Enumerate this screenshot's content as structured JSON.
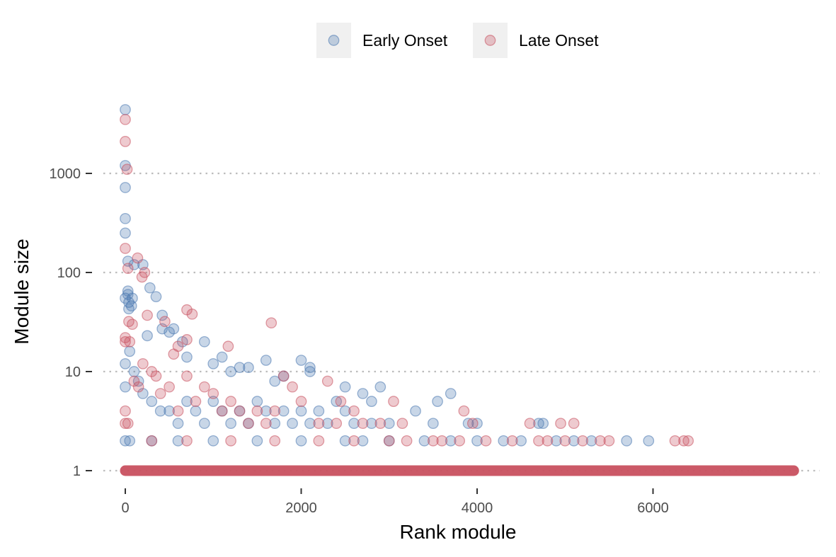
{
  "chart_data": {
    "type": "scatter",
    "xlabel": "Rank module",
    "ylabel": "Module size",
    "xlim": [
      -200,
      7800
    ],
    "ylim": [
      0.72,
      5000
    ],
    "y_scale": "log10",
    "x_ticks": [
      0,
      2000,
      4000,
      6000
    ],
    "x_tick_labels": [
      "0",
      "2000",
      "4000",
      "6000"
    ],
    "y_ticks": [
      1,
      10,
      100,
      1000
    ],
    "y_tick_labels": [
      "1",
      "10",
      "100",
      "1000"
    ],
    "grid": "horizontal dotted at major y ticks",
    "legend": {
      "position": "top",
      "items": [
        "Early Onset",
        "Late Onset"
      ]
    },
    "series": [
      {
        "name": "Early Onset",
        "color": "#4a78b0",
        "points": [
          [
            0,
            4400
          ],
          [
            0,
            1200
          ],
          [
            0,
            720
          ],
          [
            0,
            350
          ],
          [
            0,
            250
          ],
          [
            30,
            130
          ],
          [
            0,
            55
          ],
          [
            30,
            65
          ],
          [
            30,
            60
          ],
          [
            40,
            50
          ],
          [
            40,
            43
          ],
          [
            70,
            46
          ],
          [
            80,
            55
          ],
          [
            100,
            120
          ],
          [
            200,
            120
          ],
          [
            250,
            23
          ],
          [
            280,
            70
          ],
          [
            350,
            57
          ],
          [
            420,
            37
          ],
          [
            420,
            27
          ],
          [
            500,
            25
          ],
          [
            550,
            27
          ],
          [
            650,
            20
          ],
          [
            700,
            14
          ],
          [
            900,
            20
          ],
          [
            1000,
            12
          ],
          [
            1100,
            14
          ],
          [
            1200,
            10
          ],
          [
            1300,
            11
          ],
          [
            1400,
            11
          ],
          [
            1600,
            13
          ],
          [
            1700,
            8
          ],
          [
            1800,
            9
          ],
          [
            2000,
            13
          ],
          [
            2100,
            10
          ],
          [
            2100,
            11
          ],
          [
            2400,
            5
          ],
          [
            2500,
            7
          ],
          [
            2700,
            6
          ],
          [
            2800,
            5
          ],
          [
            2900,
            7
          ],
          [
            3300,
            4
          ],
          [
            3550,
            5
          ],
          [
            3700,
            6
          ],
          [
            3000,
            3
          ],
          [
            3500,
            3
          ],
          [
            3900,
            3
          ],
          [
            4000,
            3
          ],
          [
            4700,
            3
          ],
          [
            4750,
            3
          ],
          [
            0,
            12
          ],
          [
            0,
            7
          ],
          [
            50,
            16
          ],
          [
            100,
            10
          ],
          [
            150,
            8
          ],
          [
            200,
            6
          ],
          [
            300,
            5
          ],
          [
            400,
            4
          ],
          [
            500,
            4
          ],
          [
            600,
            3
          ],
          [
            700,
            5
          ],
          [
            800,
            4
          ],
          [
            900,
            3
          ],
          [
            1000,
            5
          ],
          [
            1100,
            4
          ],
          [
            1200,
            3
          ],
          [
            1300,
            4
          ],
          [
            1400,
            3
          ],
          [
            1500,
            5
          ],
          [
            1600,
            4
          ],
          [
            1700,
            3
          ],
          [
            1800,
            4
          ],
          [
            1900,
            3
          ],
          [
            2000,
            4
          ],
          [
            2100,
            3
          ],
          [
            2200,
            4
          ],
          [
            2300,
            3
          ],
          [
            2500,
            4
          ],
          [
            2600,
            3
          ],
          [
            2800,
            3
          ],
          [
            0,
            2
          ],
          [
            50,
            2
          ],
          [
            300,
            2
          ],
          [
            600,
            2
          ],
          [
            1000,
            2
          ],
          [
            1500,
            2
          ],
          [
            2000,
            2
          ],
          [
            2500,
            2
          ],
          [
            2700,
            2
          ],
          [
            3000,
            2
          ],
          [
            3400,
            2
          ],
          [
            3700,
            2
          ],
          [
            4000,
            2
          ],
          [
            4300,
            2
          ],
          [
            4500,
            2
          ],
          [
            4900,
            2
          ],
          [
            5100,
            2
          ],
          [
            5300,
            2
          ],
          [
            5700,
            2
          ],
          [
            5950,
            2
          ]
        ]
      },
      {
        "name": "Late Onset",
        "color": "#c8505f",
        "points": [
          [
            0,
            3500
          ],
          [
            0,
            2100
          ],
          [
            20,
            1100
          ],
          [
            0,
            175
          ],
          [
            30,
            110
          ],
          [
            140,
            140
          ],
          [
            190,
            90
          ],
          [
            220,
            100
          ],
          [
            80,
            30
          ],
          [
            40,
            32
          ],
          [
            0,
            22
          ],
          [
            0,
            20
          ],
          [
            50,
            20
          ],
          [
            250,
            37
          ],
          [
            450,
            32
          ],
          [
            700,
            42
          ],
          [
            760,
            38
          ],
          [
            600,
            18
          ],
          [
            550,
            15
          ],
          [
            700,
            21
          ],
          [
            1170,
            18
          ],
          [
            1660,
            31
          ],
          [
            2000,
            5
          ],
          [
            2300,
            8
          ],
          [
            2450,
            5
          ],
          [
            2600,
            4
          ],
          [
            3050,
            5
          ],
          [
            3150,
            3
          ],
          [
            3600,
            2
          ],
          [
            3850,
            4
          ],
          [
            3950,
            3
          ],
          [
            4600,
            3
          ],
          [
            4950,
            3
          ],
          [
            5100,
            3
          ],
          [
            0,
            4
          ],
          [
            0,
            3
          ],
          [
            30,
            3
          ],
          [
            100,
            8
          ],
          [
            150,
            7
          ],
          [
            200,
            12
          ],
          [
            300,
            10
          ],
          [
            350,
            9
          ],
          [
            400,
            6
          ],
          [
            500,
            7
          ],
          [
            600,
            4
          ],
          [
            700,
            9
          ],
          [
            800,
            5
          ],
          [
            900,
            7
          ],
          [
            1000,
            6
          ],
          [
            1100,
            4
          ],
          [
            1200,
            5
          ],
          [
            1300,
            4
          ],
          [
            1400,
            3
          ],
          [
            1500,
            4
          ],
          [
            1600,
            3
          ],
          [
            1700,
            4
          ],
          [
            1800,
            9
          ],
          [
            1900,
            7
          ],
          [
            2200,
            3
          ],
          [
            2400,
            3
          ],
          [
            2700,
            3
          ],
          [
            2900,
            3
          ],
          [
            3000,
            2
          ],
          [
            3200,
            2
          ],
          [
            3500,
            2
          ],
          [
            3800,
            2
          ],
          [
            4100,
            2
          ],
          [
            4400,
            2
          ],
          [
            4700,
            2
          ],
          [
            4800,
            2
          ],
          [
            5000,
            2
          ],
          [
            5200,
            2
          ],
          [
            5400,
            2
          ],
          [
            5500,
            2
          ],
          [
            6250,
            2
          ],
          [
            6350,
            2
          ],
          [
            6400,
            2
          ],
          [
            300,
            2
          ],
          [
            700,
            2
          ],
          [
            1200,
            2
          ],
          [
            1700,
            2
          ],
          [
            2200,
            2
          ],
          [
            2600,
            2
          ]
        ]
      }
    ],
    "dense_band": {
      "y": 1,
      "x_from": 0,
      "x_to": 7600
    }
  }
}
